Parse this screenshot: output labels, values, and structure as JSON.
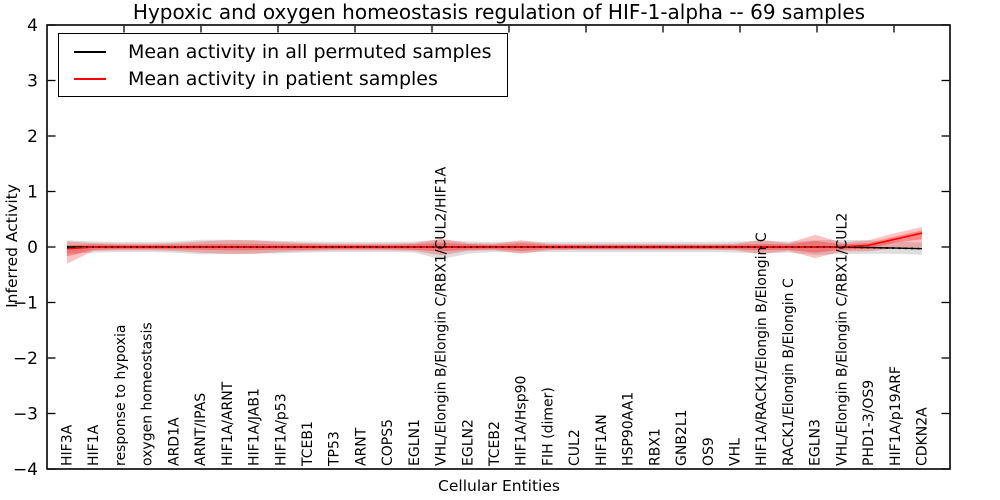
{
  "chart_data": {
    "type": "line",
    "title": "Hypoxic and oxygen homeostasis regulation of HIF-1-alpha -- 69 samples",
    "xlabel": "Cellular Entities",
    "ylabel": "Inferred Activity",
    "ylim": [
      -4,
      4
    ],
    "yticks": [
      -4,
      -3,
      -2,
      -1,
      0,
      1,
      2,
      3,
      4
    ],
    "grid": false,
    "legend_position": "upper left",
    "legend": [
      {
        "label": "Mean activity in all permuted samples",
        "color": "#000000"
      },
      {
        "label": "Mean activity in patient samples",
        "color": "#ff0000"
      }
    ],
    "colors": {
      "permuted_line": "#000000",
      "patient_line": "#ff0000",
      "permuted_band": "#000000",
      "patient_band": "#ff0000",
      "axis": "#000000"
    },
    "categories": [
      "HIF3A",
      "HIF1A",
      "response to hypoxia",
      "oxygen homeostasis",
      "ARD1A",
      "ARNT/IPAS",
      "HIF1A/ARNT",
      "HIF1A/JAB1",
      "HIF1A/p53",
      "TCEB1",
      "TP53",
      "ARNT",
      "COPS5",
      "EGLN1",
      "VHL/Elongin B/Elongin C/RBX1/CUL2/HIF1A",
      "EGLN2",
      "TCEB2",
      "HIF1A/Hsp90",
      "FIH (dimer)",
      "CUL2",
      "HIF1AN",
      "HSP90AA1",
      "RBX1",
      "GNB2L1",
      "OS9",
      "VHL",
      "HIF1A/RACK1/Elongin B/Elongin C",
      "RACK1/Elongin B/Elongin C",
      "EGLN3",
      "VHL/Elongin B/Elongin C/RBX1/CUL2",
      "PHD1-3/OS9",
      "HIF1A/p19ARF",
      "CDKN2A"
    ],
    "series": [
      {
        "name": "Mean activity in all permuted samples",
        "color": "#000000",
        "style": "solid-with-dotted-overlay",
        "values": [
          0,
          0,
          0,
          0,
          0,
          0,
          0,
          0,
          0,
          0,
          0,
          0,
          0,
          0,
          0,
          0,
          0,
          0,
          0,
          0,
          0,
          0,
          0,
          0,
          0,
          0,
          0,
          0,
          0,
          0,
          -0.01,
          -0.02,
          -0.03
        ],
        "band_upper": [
          0.12,
          0.1,
          0.09,
          0.09,
          0.1,
          0.13,
          0.13,
          0.12,
          0.11,
          0.1,
          0.09,
          0.09,
          0.09,
          0.1,
          0.13,
          0.1,
          0.09,
          0.1,
          0.09,
          0.09,
          0.09,
          0.09,
          0.09,
          0.09,
          0.09,
          0.1,
          0.11,
          0.1,
          0.12,
          0.13,
          0.12,
          0.1,
          0.08
        ],
        "band_lower": [
          -0.12,
          -0.1,
          -0.09,
          -0.09,
          -0.1,
          -0.13,
          -0.13,
          -0.12,
          -0.11,
          -0.1,
          -0.09,
          -0.09,
          -0.09,
          -0.1,
          -0.22,
          -0.12,
          -0.09,
          -0.1,
          -0.09,
          -0.09,
          -0.09,
          -0.09,
          -0.09,
          -0.09,
          -0.09,
          -0.1,
          -0.11,
          -0.1,
          -0.14,
          -0.13,
          -0.12,
          -0.12,
          -0.14
        ]
      },
      {
        "name": "Mean activity in patient samples",
        "color": "#ff0000",
        "style": "solid",
        "values": [
          -0.03,
          0,
          0,
          0,
          0,
          0,
          0,
          0,
          0,
          0,
          0,
          0,
          0,
          0,
          0,
          0,
          0,
          0,
          0,
          0,
          0,
          0,
          0,
          0,
          0,
          0,
          0,
          0,
          0,
          0,
          0.03,
          0.14,
          0.25
        ],
        "band_outer_upper": [
          0.1,
          0.07,
          0.06,
          0.06,
          0.07,
          0.1,
          0.12,
          0.12,
          0.09,
          0.07,
          0.06,
          0.06,
          0.06,
          0.07,
          0.15,
          0.07,
          0.06,
          0.12,
          0.06,
          0.05,
          0.05,
          0.05,
          0.05,
          0.05,
          0.05,
          0.06,
          0.13,
          0.07,
          0.22,
          0.08,
          0.12,
          0.25,
          0.36
        ],
        "band_outer_lower": [
          -0.3,
          -0.07,
          -0.06,
          -0.06,
          -0.07,
          -0.1,
          -0.12,
          -0.12,
          -0.09,
          -0.07,
          -0.06,
          -0.06,
          -0.06,
          -0.07,
          -0.15,
          -0.07,
          -0.06,
          -0.12,
          -0.06,
          -0.05,
          -0.05,
          -0.05,
          -0.05,
          -0.05,
          -0.05,
          -0.06,
          -0.13,
          -0.07,
          -0.2,
          -0.08,
          -0.08,
          -0.02,
          -0.01
        ],
        "band_inner_upper": [
          0.03,
          0.05,
          0.04,
          0.04,
          0.04,
          0.05,
          0.06,
          0.06,
          0.05,
          0.05,
          0.04,
          0.04,
          0.04,
          0.05,
          0.08,
          0.05,
          0.04,
          0.07,
          0.04,
          0.04,
          0.04,
          0.04,
          0.04,
          0.04,
          0.04,
          0.04,
          0.06,
          0.05,
          0.11,
          0.05,
          0.07,
          0.19,
          0.3
        ],
        "band_inner_lower": [
          -0.17,
          -0.05,
          -0.04,
          -0.04,
          -0.04,
          -0.05,
          -0.06,
          -0.06,
          -0.05,
          -0.05,
          -0.04,
          -0.04,
          -0.04,
          -0.05,
          -0.08,
          -0.05,
          -0.04,
          -0.07,
          -0.04,
          -0.04,
          -0.04,
          -0.04,
          -0.04,
          -0.04,
          -0.04,
          -0.04,
          -0.06,
          -0.05,
          -0.1,
          -0.05,
          -0.03,
          0.08,
          0.14
        ]
      }
    ]
  }
}
